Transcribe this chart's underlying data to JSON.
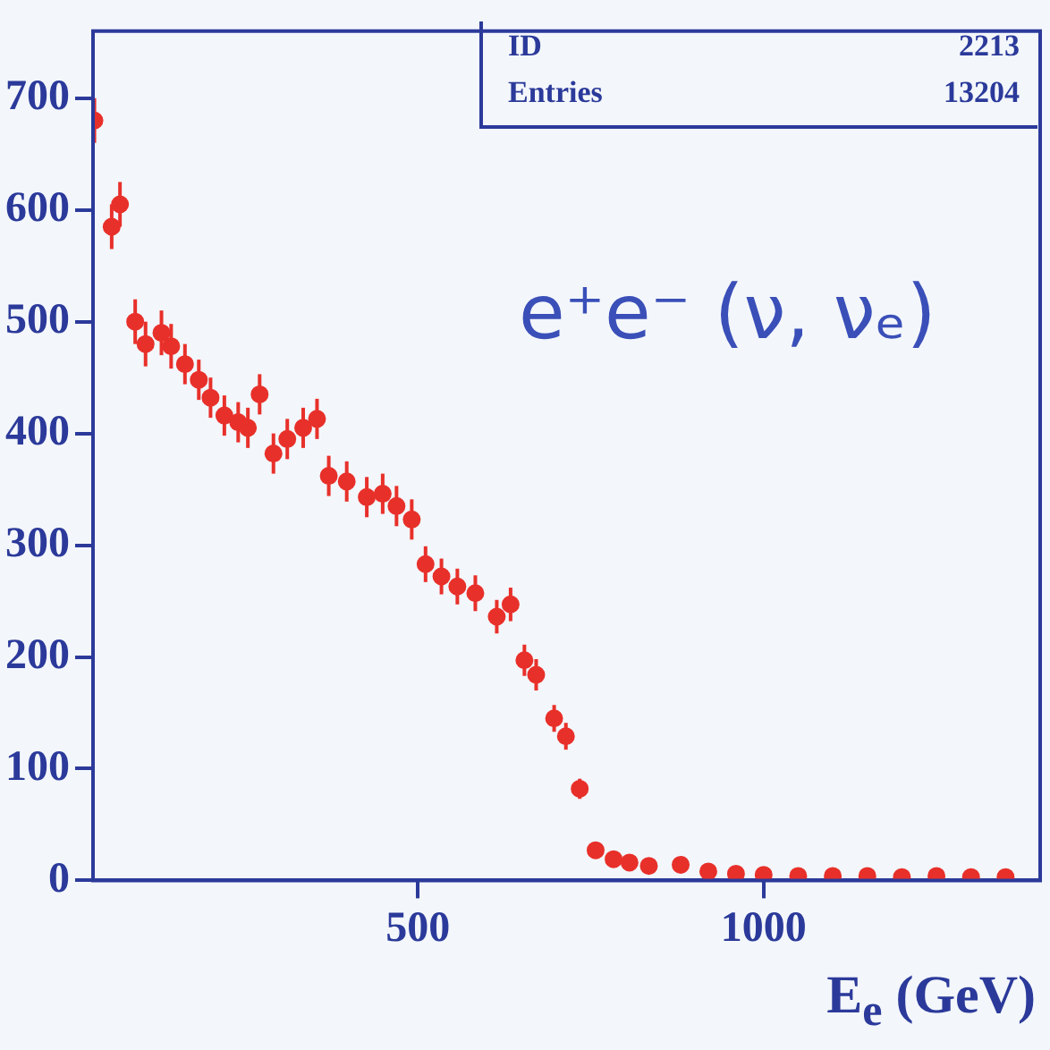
{
  "chart_data": {
    "type": "scatter",
    "xlabel": "E$_{e}$ (GeV)",
    "annotations": [
      "e⁺e⁻ (ν, νₑ)",
      "ID",
      "2213",
      "Entries",
      "13204"
    ],
    "x": [
      32,
      57,
      69,
      91,
      106,
      129,
      143,
      163,
      183,
      200,
      220,
      240,
      254,
      271,
      291,
      311,
      334,
      354,
      371,
      397,
      426,
      449,
      469,
      491,
      511,
      534,
      557,
      583,
      614,
      634,
      654,
      671,
      697,
      714,
      734,
      757,
      783,
      806,
      834,
      880,
      920,
      960,
      1000,
      1050,
      1100,
      1150,
      1200,
      1250,
      1300,
      1350
    ],
    "series": [
      {
        "color": "#e8302a",
        "values": [
          680,
          585,
          605,
          500,
          480,
          490,
          478,
          462,
          448,
          432,
          416,
          410,
          405,
          435,
          382,
          395,
          405,
          413,
          362,
          357,
          343,
          346,
          335,
          323,
          283,
          272,
          263,
          257,
          236,
          247,
          197,
          184,
          145,
          129,
          82,
          27,
          19,
          16,
          13,
          14,
          8,
          6,
          5,
          4,
          4,
          4,
          3,
          4,
          3,
          3
        ],
        "errors": [
          20,
          20,
          20,
          20,
          20,
          20,
          20,
          18,
          18,
          18,
          18,
          18,
          18,
          18,
          18,
          18,
          18,
          18,
          18,
          18,
          18,
          18,
          18,
          18,
          16,
          16,
          16,
          16,
          15,
          15,
          14,
          14,
          12,
          12,
          9,
          5,
          4,
          4,
          4,
          4,
          3,
          3,
          2,
          2,
          2,
          2,
          2,
          2,
          2,
          2
        ]
      }
    ],
    "xlim": [
      30,
      1400
    ],
    "xticks": [
      500,
      1000
    ],
    "ylim": [
      0,
      760
    ],
    "yticks": [
      0,
      100,
      200,
      300,
      400,
      500,
      600,
      700
    ],
    "grid": false,
    "legend": false,
    "marker": "circle"
  }
}
